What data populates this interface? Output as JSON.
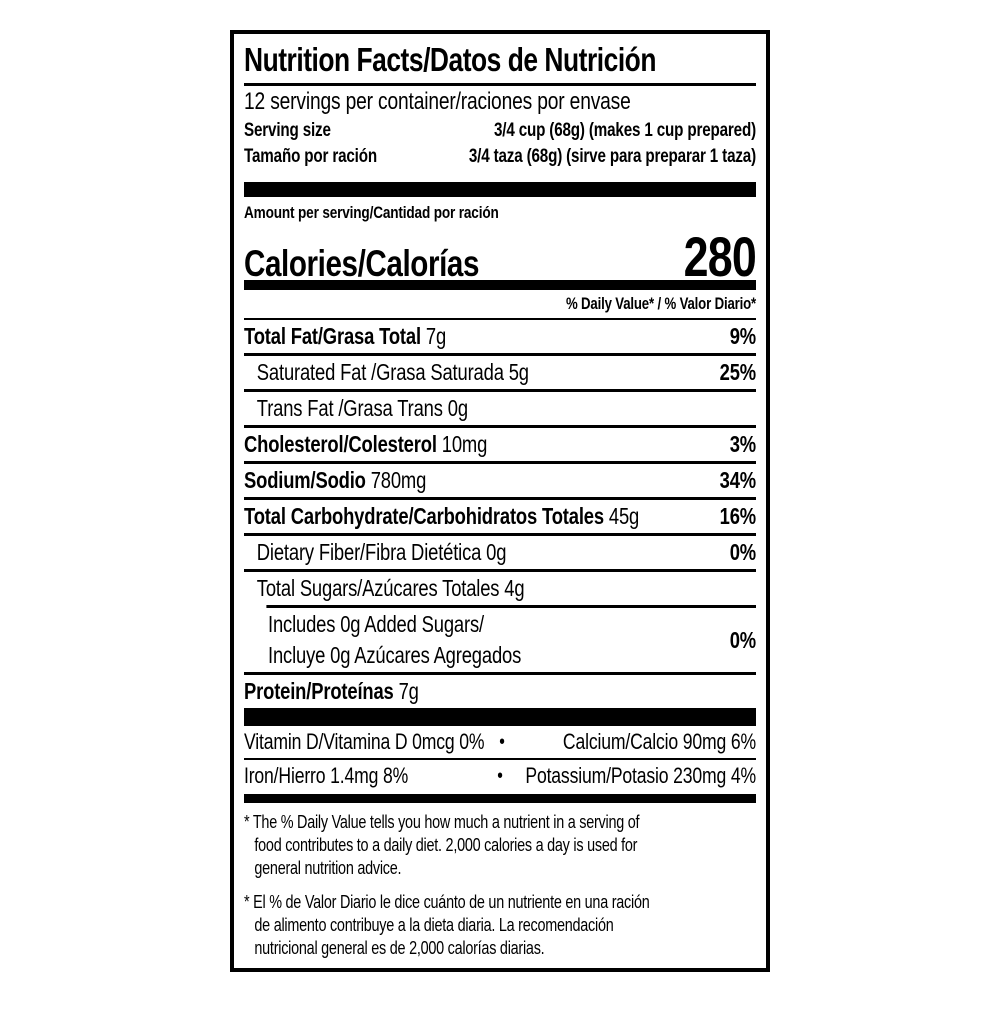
{
  "label": {
    "title": "Nutrition Facts/Datos de Nutrición",
    "servings_per_container": "12 servings per container/raciones por envase",
    "serving_size": {
      "label_en": "Serving size",
      "value_en": "3/4 cup (68g) (makes 1 cup prepared)",
      "label_es": "Tamaño por ración",
      "value_es": "3/4 taza (68g) (sirve para preparar 1 taza)"
    },
    "amount_per_serving": "Amount per serving/Cantidad por ración",
    "calories": {
      "label": "Calories/Calorías",
      "value": "280"
    },
    "daily_value_header": "% Daily Value* / % Valor Diario*",
    "nutrients": [
      {
        "name": "Total Fat/Grasa Total",
        "amount": " 7g",
        "dv": "9%"
      },
      {
        "name": "Saturated Fat /Grasa Saturada 5g",
        "amount": "",
        "dv": "25%"
      },
      {
        "name": "Trans Fat /Grasa Trans 0g",
        "amount": "",
        "dv": ""
      },
      {
        "name": "Cholesterol/Colesterol",
        "amount": " 10mg",
        "dv": "3%"
      },
      {
        "name": "Sodium/Sodio",
        "amount": " 780mg",
        "dv": "34%"
      },
      {
        "name": "Total Carbohydrate/Carbohidratos Totales",
        "amount": " 45g",
        "dv": "16%"
      },
      {
        "name": "Dietary Fiber/Fibra Dietética 0g",
        "amount": "",
        "dv": "0%"
      },
      {
        "name": "Total Sugars/Azúcares Totales 4g",
        "amount": "",
        "dv": ""
      },
      {
        "name": "Includes 0g Added Sugars/\nIncluye 0g Azúcares Agregados",
        "amount": "",
        "dv": "0%"
      },
      {
        "name": "Protein/Proteínas",
        "amount": " 7g",
        "dv": ""
      }
    ],
    "vitamins": {
      "bullet": "•",
      "rows": [
        {
          "left": "Vitamin D/Vitamina D 0mcg 0%",
          "right": "Calcium/Calcio 90mg 6%"
        },
        {
          "left": "Iron/Hierro 1.4mg 8%",
          "right": "Potassium/Potasio 230mg 4%"
        }
      ]
    },
    "footnotes": {
      "en": "* The % Daily Value tells you how much a nutrient in a serving of\nfood contributes to a daily diet. 2,000 calories a day is used for\ngeneral nutrition advice.",
      "es": "* El % de Valor Diario le dice cuánto de un nutriente en una ración\nde alimento contribuye a la dieta diaria. La recomendación\nnutricional general es de 2,000 calorías diarias."
    },
    "colors": {
      "ink": "#000000",
      "background": "#ffffff"
    }
  }
}
